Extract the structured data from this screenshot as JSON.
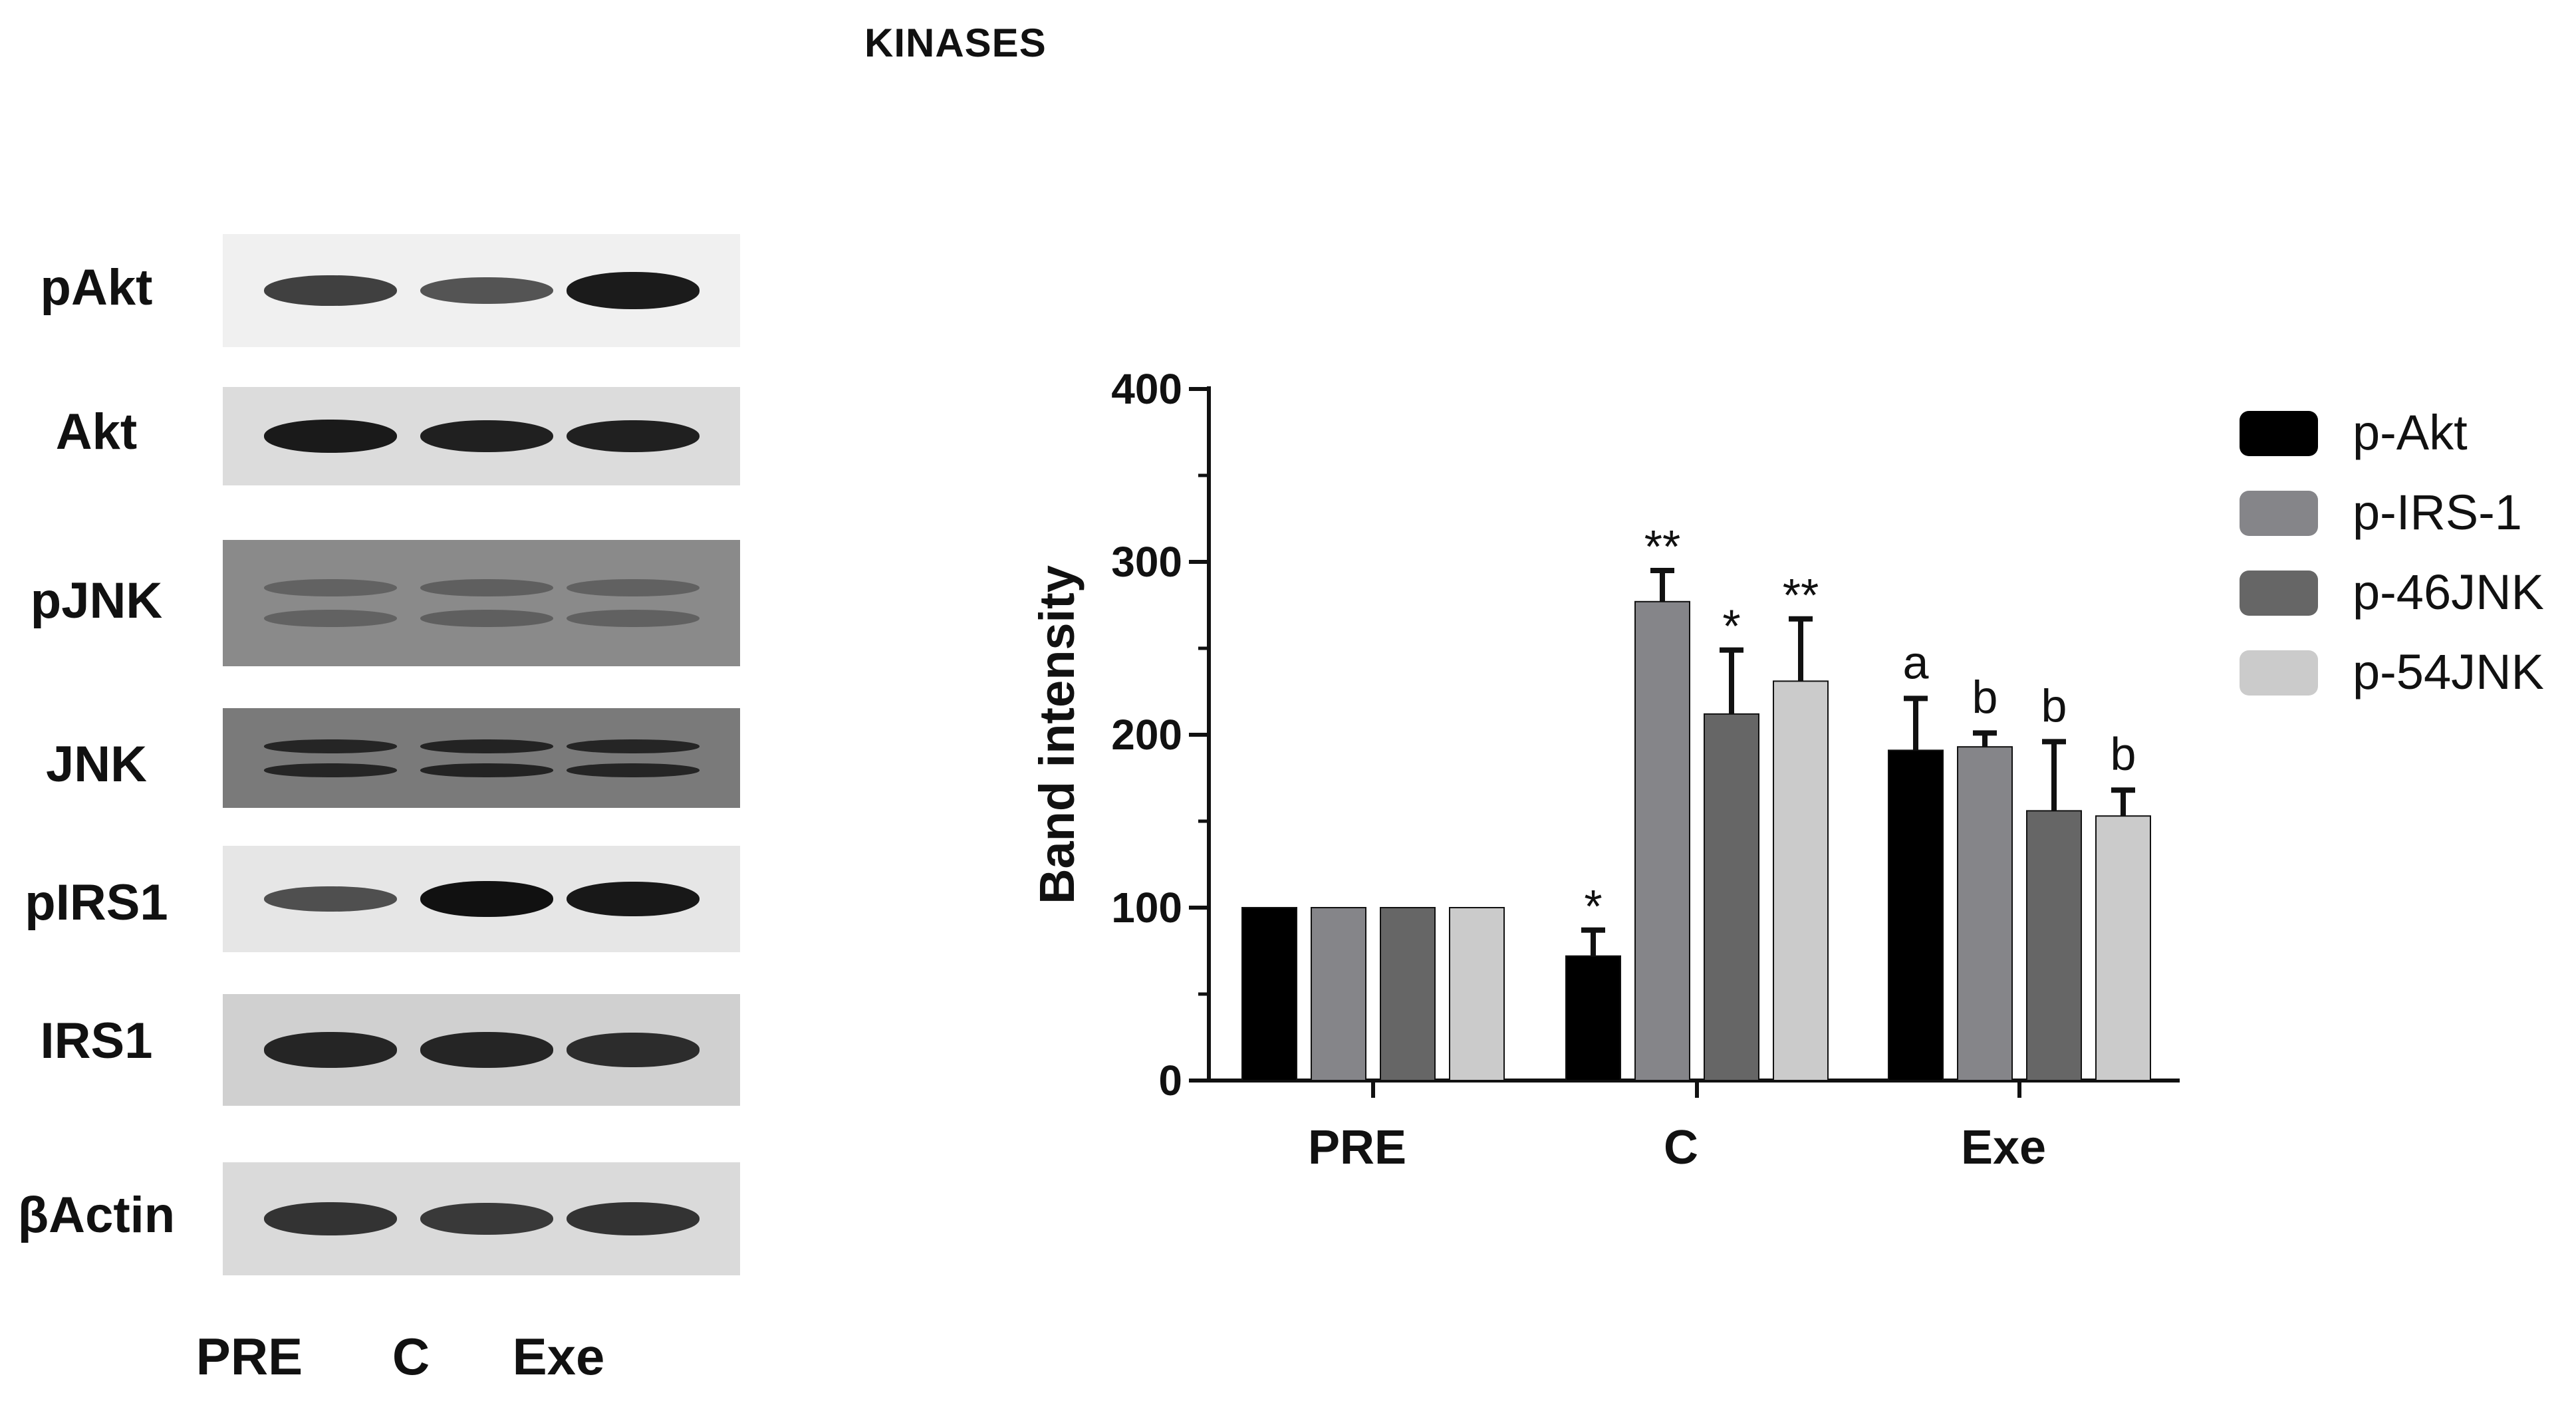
{
  "figure_title": "KINASES",
  "blot": {
    "rows": [
      {
        "label": "pAkt",
        "bg": "#f0f0f0",
        "band_color": "#141414",
        "lane_intensity": [
          0.7,
          0.55,
          0.95
        ],
        "double": false
      },
      {
        "label": "Akt",
        "bg": "#dcdcdc",
        "band_color": "#1a1a1a",
        "lane_intensity": [
          1.0,
          0.95,
          0.95
        ],
        "double": false
      },
      {
        "label": "pJNK",
        "bg": "#8a8a8a",
        "band_color": "#505050",
        "lane_intensity": [
          0.5,
          0.6,
          0.55
        ],
        "double": true
      },
      {
        "label": "JNK",
        "bg": "#7a7a7a",
        "band_color": "#202020",
        "lane_intensity": [
          0.9,
          0.95,
          0.9
        ],
        "double": true
      },
      {
        "label": "pIRS1",
        "bg": "#e6e6e6",
        "band_color": "#111111",
        "lane_intensity": [
          0.55,
          1.0,
          0.95
        ],
        "double": false
      },
      {
        "label": "IRS1",
        "bg": "#d0d0d0",
        "band_color": "#1a1a1a",
        "lane_intensity": [
          0.9,
          0.9,
          0.85
        ],
        "double": false
      },
      {
        "label": "βActin",
        "bg": "#dadada",
        "band_color": "#1a1a1a",
        "lane_intensity": [
          0.8,
          0.75,
          0.8
        ],
        "double": false
      }
    ],
    "lanes": [
      "PRE",
      "C",
      "Exe"
    ]
  },
  "chart_data": {
    "type": "bar",
    "categories": [
      "PRE",
      "C",
      "Exe"
    ],
    "ylabel": "Band intensity",
    "ylim": [
      0,
      400
    ],
    "yticks": [
      0,
      100,
      200,
      300,
      400
    ],
    "grid": false,
    "legend_position": "right",
    "series": [
      {
        "name": "p-Akt",
        "color": "#000000",
        "values": [
          100,
          72,
          191
        ],
        "errors": [
          0,
          15,
          30
        ],
        "annotations": [
          "",
          "*",
          "a"
        ]
      },
      {
        "name": "p-IRS-1",
        "color": "#858589",
        "values": [
          100,
          277,
          193
        ],
        "errors": [
          0,
          18,
          8
        ],
        "annotations": [
          "",
          "**",
          "b"
        ]
      },
      {
        "name": "p-46JNK",
        "color": "#666666",
        "values": [
          100,
          212,
          156
        ],
        "errors": [
          0,
          37,
          40
        ],
        "annotations": [
          "",
          "*",
          "b"
        ]
      },
      {
        "name": "p-54JNK",
        "color": "#cbcbcb",
        "values": [
          100,
          231,
          153
        ],
        "errors": [
          0,
          36,
          15
        ],
        "annotations": [
          "",
          "**",
          "b"
        ]
      }
    ]
  }
}
